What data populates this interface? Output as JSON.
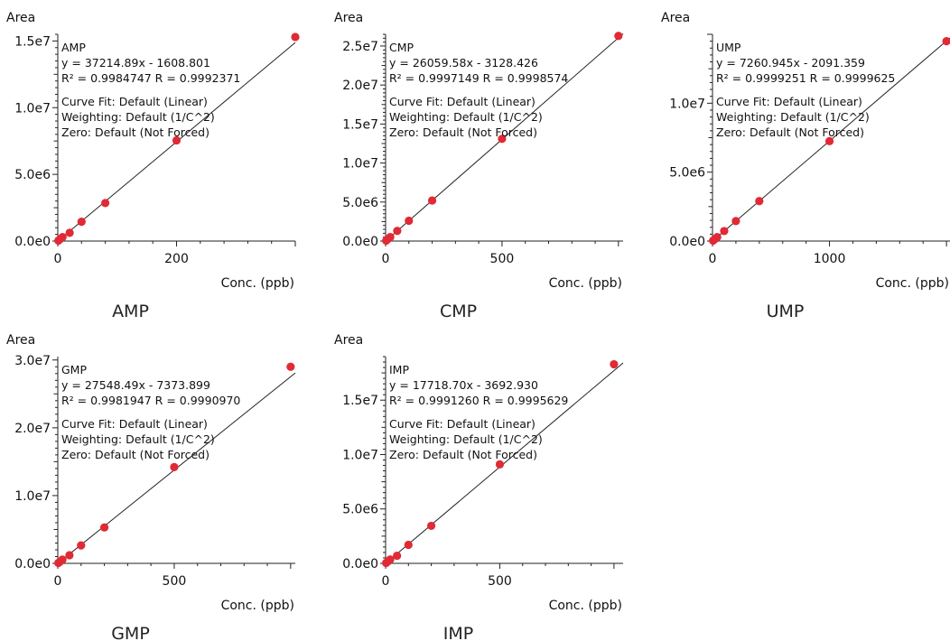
{
  "chart_data": [
    {
      "type": "scatter",
      "title": "AMP",
      "ylabel": "Area",
      "xlabel": "Conc. (ppb)",
      "xlim": [
        0,
        400
      ],
      "ylim": [
        0,
        15500000
      ],
      "x_ticks": [
        0,
        200
      ],
      "x_tick_labels": [
        "0",
        "200"
      ],
      "y_ticks": [
        0,
        5000000,
        10000000,
        15000000
      ],
      "y_tick_labels": [
        "0.0e0",
        "5.0e6",
        "1.0e7",
        "1.5e7"
      ],
      "annotation": [
        "AMP",
        "y = 37214.89x - 1608.801",
        "R² = 0.9984747    R = 0.9992371",
        "Curve Fit: Default (Linear)",
        "Weighting: Default (1/C^2)",
        "Zero: Default (Not Forced)"
      ],
      "points": [
        {
          "x": 1,
          "y": 35000
        },
        {
          "x": 4,
          "y": 150000
        },
        {
          "x": 8,
          "y": 300000
        },
        {
          "x": 20,
          "y": 620000
        },
        {
          "x": 40,
          "y": 1450000
        },
        {
          "x": 80,
          "y": 2850000
        },
        {
          "x": 200,
          "y": 7550000
        },
        {
          "x": 400,
          "y": 15300000
        }
      ],
      "fit": {
        "slope": 37214.89,
        "intercept": -1608.801
      },
      "grid": false,
      "marker_color": "#e02a35",
      "line_color": "#222222"
    },
    {
      "type": "scatter",
      "title": "CMP",
      "ylabel": "Area",
      "xlabel": "Conc. (ppb)",
      "xlim": [
        0,
        1020
      ],
      "ylim": [
        0,
        26500000
      ],
      "x_ticks": [
        0,
        500
      ],
      "x_tick_labels": [
        "0",
        "500"
      ],
      "y_ticks": [
        0,
        5000000,
        10000000,
        15000000,
        20000000,
        25000000
      ],
      "y_tick_labels": [
        "0.0e0",
        "5.0e6",
        "1.0e7",
        "1.5e7",
        "2.0e7",
        "2.5e7"
      ],
      "annotation": [
        "CMP",
        "y = 26059.58x - 3128.426",
        "R² = 0.9997149    R = 0.9998574",
        "Curve Fit: Default (Linear)",
        "Weighting: Default (1/C^2)",
        "Zero: Default (Not Forced)"
      ],
      "points": [
        {
          "x": 2.5,
          "y": 62000
        },
        {
          "x": 10,
          "y": 255000
        },
        {
          "x": 20,
          "y": 515000
        },
        {
          "x": 50,
          "y": 1300000
        },
        {
          "x": 100,
          "y": 2600000
        },
        {
          "x": 200,
          "y": 5200000
        },
        {
          "x": 500,
          "y": 13100000
        },
        {
          "x": 1000,
          "y": 26300000
        }
      ],
      "fit": {
        "slope": 26059.58,
        "intercept": -3128.426
      },
      "grid": false,
      "marker_color": "#e02a35",
      "line_color": "#222222"
    },
    {
      "type": "scatter",
      "title": "UMP",
      "ylabel": "Area",
      "xlabel": "Conc. (ppb)",
      "xlim": [
        0,
        2030
      ],
      "ylim": [
        0,
        15000000
      ],
      "x_ticks": [
        0,
        1000
      ],
      "x_tick_labels": [
        "0",
        "1000"
      ],
      "y_ticks": [
        0,
        5000000,
        10000000
      ],
      "y_tick_labels": [
        "0.0e0",
        "5.0e6",
        "1.0e7"
      ],
      "annotation": [
        "UMP",
        "y = 7260.945x - 2091.359",
        "R² = 0.9999251    R = 0.9999625",
        "Curve Fit: Default (Linear)",
        "Weighting: Default (1/C^2)",
        "Zero: Default (Not Forced)"
      ],
      "points": [
        {
          "x": 5,
          "y": 34000
        },
        {
          "x": 20,
          "y": 143000
        },
        {
          "x": 40,
          "y": 288000
        },
        {
          "x": 100,
          "y": 725000
        },
        {
          "x": 200,
          "y": 1450000
        },
        {
          "x": 400,
          "y": 2900000
        },
        {
          "x": 1000,
          "y": 7250000
        },
        {
          "x": 2000,
          "y": 14500000
        }
      ],
      "fit": {
        "slope": 7260.945,
        "intercept": -2091.359
      },
      "grid": false,
      "marker_color": "#e02a35",
      "line_color": "#222222"
    },
    {
      "type": "scatter",
      "title": "GMP",
      "ylabel": "Area",
      "xlabel": "Conc. (ppb)",
      "xlim": [
        0,
        1020
      ],
      "ylim": [
        0,
        30500000
      ],
      "x_ticks": [
        0,
        500
      ],
      "x_tick_labels": [
        "0",
        "500"
      ],
      "y_ticks": [
        0,
        10000000,
        20000000,
        30000000
      ],
      "y_tick_labels": [
        "0.0e0",
        "1.0e7",
        "2.0e7",
        "3.0e7"
      ],
      "annotation": [
        "GMP",
        "y = 27548.49x - 7373.899",
        "R² = 0.9981947    R = 0.9990970",
        "Curve Fit: Default (Linear)",
        "Weighting: Default (1/C^2)",
        "Zero: Default (Not Forced)"
      ],
      "points": [
        {
          "x": 2.5,
          "y": 62000
        },
        {
          "x": 10,
          "y": 270000
        },
        {
          "x": 20,
          "y": 545000
        },
        {
          "x": 50,
          "y": 1200000
        },
        {
          "x": 100,
          "y": 2650000
        },
        {
          "x": 200,
          "y": 5300000
        },
        {
          "x": 500,
          "y": 14200000
        },
        {
          "x": 1000,
          "y": 29000000
        }
      ],
      "fit": {
        "slope": 27548.49,
        "intercept": -7373.899
      },
      "grid": false,
      "marker_color": "#e02a35",
      "line_color": "#222222"
    },
    {
      "type": "scatter",
      "title": "IMP",
      "ylabel": "Area",
      "xlabel": "Conc. (ppb)",
      "xlim": [
        0,
        1040
      ],
      "ylim": [
        0,
        19000000
      ],
      "x_ticks": [
        0,
        500
      ],
      "x_tick_labels": [
        "0",
        "500"
      ],
      "y_ticks": [
        0,
        5000000,
        10000000,
        15000000
      ],
      "y_tick_labels": [
        "0.0e0",
        "5.0e6",
        "1.0e7",
        "1.5e7"
      ],
      "annotation": [
        "IMP",
        "y = 17718.70x - 3692.930",
        "R² = 0.9991260    R = 0.9995629",
        "Curve Fit: Default (Linear)",
        "Weighting: Default (1/C^2)",
        "Zero: Default (Not Forced)"
      ],
      "points": [
        {
          "x": 2.5,
          "y": 42000
        },
        {
          "x": 10,
          "y": 175000
        },
        {
          "x": 20,
          "y": 350000
        },
        {
          "x": 50,
          "y": 700000
        },
        {
          "x": 100,
          "y": 1700000
        },
        {
          "x": 200,
          "y": 3450000
        },
        {
          "x": 500,
          "y": 9100000
        },
        {
          "x": 1000,
          "y": 18300000
        }
      ],
      "fit": {
        "slope": 17718.7,
        "intercept": -3692.93
      },
      "grid": false,
      "marker_color": "#e02a35",
      "line_color": "#222222"
    }
  ]
}
